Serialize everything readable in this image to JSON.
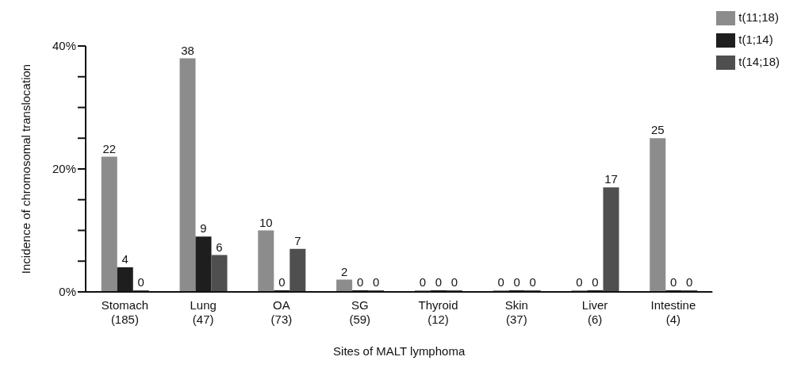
{
  "chart_data": {
    "type": "bar",
    "xlabel": "Sites of MALT lymphoma",
    "ylabel": "Incidence of chromosomal translocation",
    "categories": [
      "Stomach\n(185)",
      "Lung\n(47)",
      "OA\n(73)",
      "SG\n(59)",
      "Thyroid\n(12)",
      "Skin\n(37)",
      "Liver\n(6)",
      "Intestine\n(4)"
    ],
    "series": [
      {
        "name": "t(11;18)",
        "color": "#8c8c8c",
        "values": [
          22,
          38,
          10,
          2,
          0,
          0,
          0,
          25
        ]
      },
      {
        "name": "t(1;14)",
        "color": "#1e1e1e",
        "values": [
          4,
          9,
          0,
          0,
          0,
          0,
          0,
          0
        ]
      },
      {
        "name": "t(14;18)",
        "color": "#4f4f4f",
        "values": [
          0,
          6,
          7,
          0,
          0,
          0,
          17,
          0
        ]
      }
    ],
    "ylim": [
      0,
      40
    ],
    "yticks": [
      {
        "value": 0,
        "label": "0%"
      },
      {
        "value": 5,
        "label": null
      },
      {
        "value": 10,
        "label": null
      },
      {
        "value": 15,
        "label": null
      },
      {
        "value": 20,
        "label": "20%"
      },
      {
        "value": 25,
        "label": null
      },
      {
        "value": 30,
        "label": null
      },
      {
        "value": 35,
        "label": null
      },
      {
        "value": 40,
        "label": "40%"
      }
    ],
    "data_labels": true,
    "legend": "top right",
    "grid": false
  }
}
